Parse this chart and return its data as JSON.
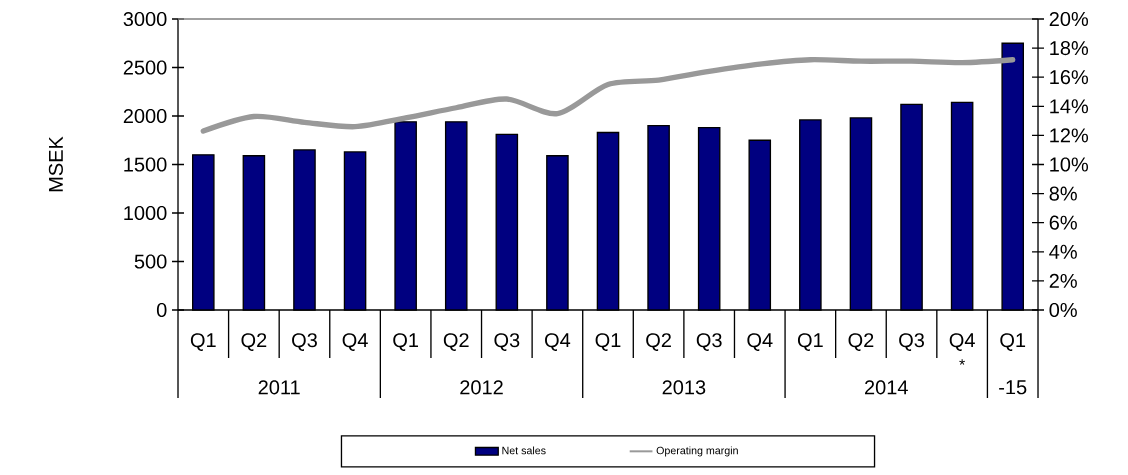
{
  "chart_data": {
    "type": "bar",
    "categories": [
      "Q1",
      "Q2",
      "Q3",
      "Q4",
      "Q1",
      "Q2",
      "Q3",
      "Q4",
      "Q1",
      "Q2",
      "Q3",
      "Q4",
      "Q1",
      "Q2",
      "Q3",
      "Q4",
      "Q1"
    ],
    "series": [
      {
        "name": "Net sales",
        "color": "#000080",
        "values": [
          1600,
          1590,
          1650,
          1630,
          1940,
          1940,
          1810,
          1590,
          1830,
          1900,
          1880,
          1750,
          1960,
          1980,
          2120,
          2140,
          2750
        ]
      },
      {
        "name": "Operating margin",
        "type": "line",
        "axis": "y2",
        "color": "#999999",
        "values": [
          12.3,
          13.3,
          12.9,
          12.6,
          13.2,
          13.9,
          14.5,
          13.5,
          15.5,
          15.8,
          16.4,
          16.9,
          17.2,
          17.1,
          17.1,
          17.0,
          17.2
        ]
      }
    ],
    "ylabel": "MSEK",
    "ylim": [
      0,
      3000
    ],
    "yticks": [
      0,
      500,
      1000,
      1500,
      2000,
      2500,
      3000
    ],
    "y2lim": [
      0,
      20
    ],
    "y2ticks": [
      {
        "value": 0,
        "label": "0%"
      },
      {
        "value": 2,
        "label": "2%"
      },
      {
        "value": 4,
        "label": "4%"
      },
      {
        "value": 6,
        "label": "6%"
      },
      {
        "value": 8,
        "label": "8%"
      },
      {
        "value": 10,
        "label": "10%"
      },
      {
        "value": 12,
        "label": "12%"
      },
      {
        "value": 14,
        "label": "14%"
      },
      {
        "value": 16,
        "label": "16%"
      },
      {
        "value": 18,
        "label": "18%"
      },
      {
        "value": 20,
        "label": "20%"
      }
    ],
    "annotations": [
      "2011",
      "2012",
      "2013",
      "2014",
      "-15",
      "*"
    ],
    "legend": "bottom"
  }
}
